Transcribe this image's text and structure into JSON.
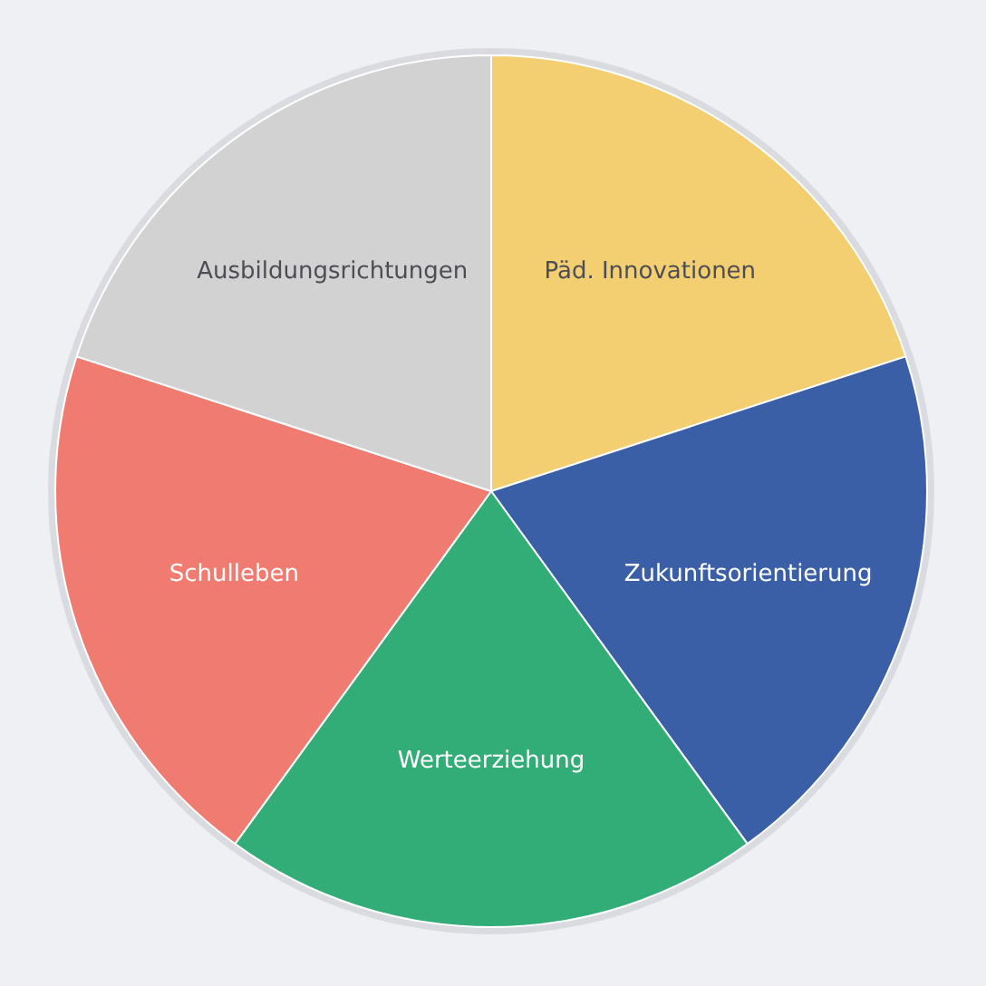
{
  "chart_data": {
    "type": "pie",
    "categories": [
      "Päd. Innovationen",
      "Zukunftsorientierung",
      "Werteerziehung",
      "Schulleben",
      "Ausbildungsrichtungen"
    ],
    "values": [
      20,
      20,
      20,
      20,
      20
    ],
    "colors": [
      "#f3cf72",
      "#3a5fa6",
      "#33ad78",
      "#f07b70",
      "#d2d2d2"
    ],
    "legend": false
  }
}
